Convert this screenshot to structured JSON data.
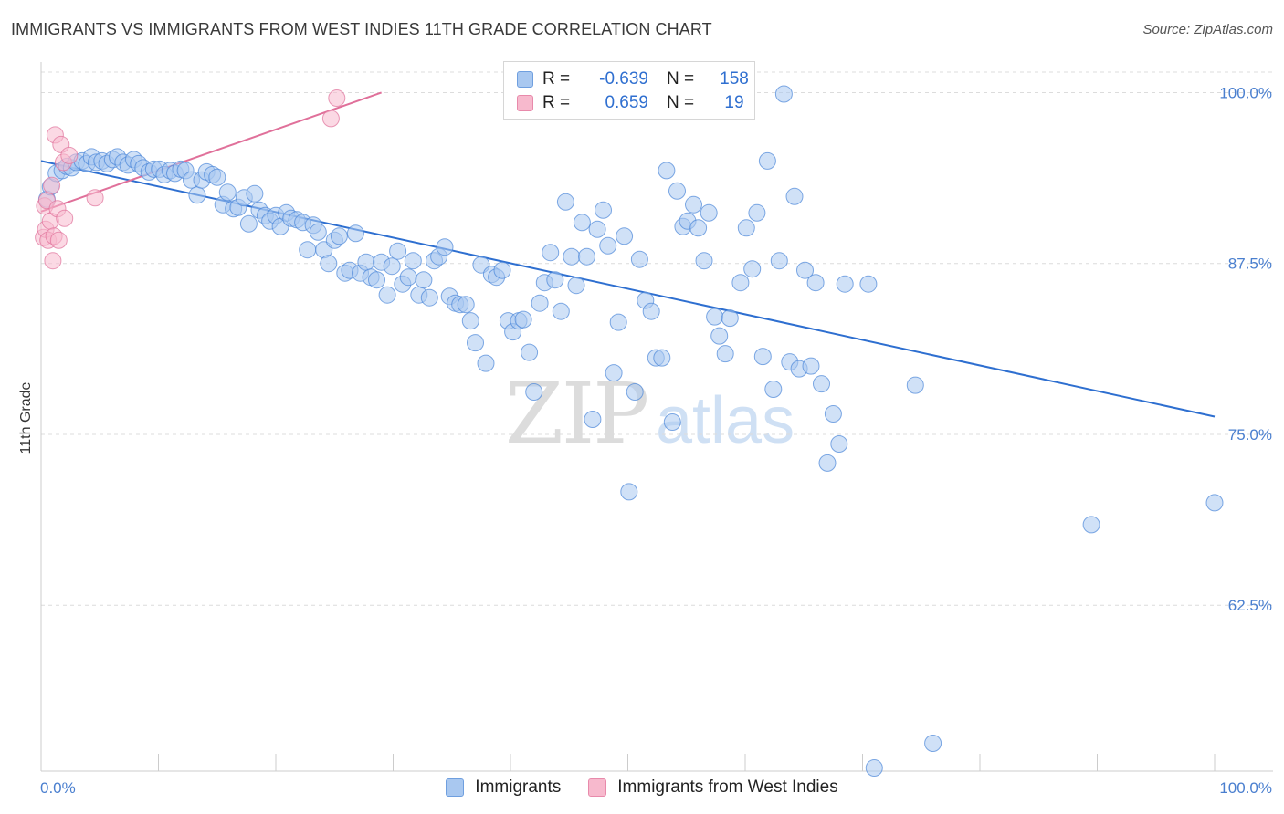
{
  "header": {
    "title": "IMMIGRANTS VS IMMIGRANTS FROM WEST INDIES 11TH GRADE CORRELATION CHART",
    "source": "Source: ZipAtlas.com"
  },
  "watermark": {
    "zip": "ZIP",
    "atlas": "atlas"
  },
  "legend": {
    "rows": [
      {
        "r_label": "R =",
        "r_value": "-0.639",
        "n_label": "N =",
        "n_value": "158",
        "color": "#a9c8f0"
      },
      {
        "r_label": "R =",
        "r_value": "0.659",
        "n_label": "N =",
        "n_value": "19",
        "color": "#f7b9cd"
      }
    ]
  },
  "bottom_legend": {
    "items": [
      {
        "label": "Immigrants",
        "color": "#a9c8f0"
      },
      {
        "label": "Immigrants from West Indies",
        "color": "#f7b9cd"
      }
    ]
  },
  "chart_data": {
    "type": "scatter",
    "title": "IMMIGRANTS VS IMMIGRANTS FROM WEST INDIES 11TH GRADE CORRELATION CHART",
    "ylabel": "11th Grade",
    "xlabel": "",
    "xlim": [
      0,
      100
    ],
    "ylim": [
      50.5,
      101.5
    ],
    "x_tick_labels": [
      "0.0%",
      "100.0%"
    ],
    "y_ticks": [
      62.5,
      75.0,
      87.5,
      100.0
    ],
    "y_tick_labels": [
      "62.5%",
      "75.0%",
      "87.5%",
      "100.0%"
    ],
    "grid": "horizontal dashed",
    "legend_position": "top-center",
    "series": [
      {
        "name": "Immigrants",
        "color": "#4a86d8",
        "fill": "#a9c8f0",
        "trend": {
          "x": [
            0,
            100
          ],
          "y": [
            95.0,
            76.3
          ]
        },
        "points": [
          [
            0.5,
            92.2
          ],
          [
            0.8,
            93.1
          ],
          [
            1.3,
            94.1
          ],
          [
            1.8,
            94.3
          ],
          [
            2.2,
            94.6
          ],
          [
            2.6,
            94.5
          ],
          [
            3.0,
            94.9
          ],
          [
            3.5,
            95.0
          ],
          [
            3.9,
            94.8
          ],
          [
            4.3,
            95.3
          ],
          [
            4.7,
            94.9
          ],
          [
            5.2,
            95.0
          ],
          [
            5.6,
            94.8
          ],
          [
            6.1,
            95.1
          ],
          [
            6.5,
            95.3
          ],
          [
            7.0,
            94.9
          ],
          [
            7.4,
            94.7
          ],
          [
            7.9,
            95.1
          ],
          [
            8.3,
            94.8
          ],
          [
            8.7,
            94.5
          ],
          [
            9.2,
            94.2
          ],
          [
            9.6,
            94.4
          ],
          [
            10.1,
            94.4
          ],
          [
            10.5,
            94.0
          ],
          [
            11.0,
            94.3
          ],
          [
            11.4,
            94.1
          ],
          [
            11.9,
            94.4
          ],
          [
            12.3,
            94.3
          ],
          [
            12.8,
            93.6
          ],
          [
            13.3,
            92.5
          ],
          [
            13.7,
            93.6
          ],
          [
            14.1,
            94.2
          ],
          [
            14.6,
            94.0
          ],
          [
            15.0,
            93.8
          ],
          [
            15.5,
            91.8
          ],
          [
            15.9,
            92.7
          ],
          [
            16.4,
            91.5
          ],
          [
            16.8,
            91.6
          ],
          [
            17.3,
            92.3
          ],
          [
            17.7,
            90.4
          ],
          [
            18.2,
            92.6
          ],
          [
            18.6,
            91.4
          ],
          [
            19.1,
            91.0
          ],
          [
            19.5,
            90.6
          ],
          [
            20.0,
            91.0
          ],
          [
            20.4,
            90.2
          ],
          [
            20.9,
            91.2
          ],
          [
            21.3,
            90.8
          ],
          [
            21.8,
            90.7
          ],
          [
            22.3,
            90.5
          ],
          [
            22.7,
            88.5
          ],
          [
            23.2,
            90.3
          ],
          [
            23.6,
            89.8
          ],
          [
            24.1,
            88.5
          ],
          [
            24.5,
            87.5
          ],
          [
            25.0,
            89.2
          ],
          [
            25.4,
            89.5
          ],
          [
            25.9,
            86.8
          ],
          [
            26.3,
            87.0
          ],
          [
            26.8,
            89.7
          ],
          [
            27.2,
            86.8
          ],
          [
            27.7,
            87.6
          ],
          [
            28.1,
            86.5
          ],
          [
            28.6,
            86.3
          ],
          [
            29.0,
            87.6
          ],
          [
            29.5,
            85.2
          ],
          [
            29.9,
            87.3
          ],
          [
            30.4,
            88.4
          ],
          [
            30.8,
            86.0
          ],
          [
            31.3,
            86.5
          ],
          [
            31.7,
            87.7
          ],
          [
            32.2,
            85.2
          ],
          [
            32.6,
            86.3
          ],
          [
            33.1,
            85.0
          ],
          [
            33.5,
            87.7
          ],
          [
            33.9,
            88.0
          ],
          [
            34.4,
            88.7
          ],
          [
            34.8,
            85.1
          ],
          [
            35.3,
            84.6
          ],
          [
            35.7,
            84.5
          ],
          [
            36.2,
            84.5
          ],
          [
            36.6,
            83.3
          ],
          [
            37.0,
            81.7
          ],
          [
            37.5,
            87.4
          ],
          [
            37.9,
            80.2
          ],
          [
            38.4,
            86.7
          ],
          [
            38.8,
            86.5
          ],
          [
            39.3,
            87.0
          ],
          [
            39.8,
            83.3
          ],
          [
            40.2,
            82.5
          ],
          [
            40.7,
            83.3
          ],
          [
            41.1,
            83.4
          ],
          [
            41.6,
            81.0
          ],
          [
            42.0,
            78.1
          ],
          [
            42.5,
            84.6
          ],
          [
            42.9,
            86.1
          ],
          [
            43.4,
            88.3
          ],
          [
            43.8,
            86.3
          ],
          [
            44.3,
            84.0
          ],
          [
            44.7,
            92.0
          ],
          [
            45.2,
            88.0
          ],
          [
            45.6,
            85.9
          ],
          [
            46.1,
            90.5
          ],
          [
            46.5,
            88.0
          ],
          [
            47.0,
            76.1
          ],
          [
            47.4,
            90.0
          ],
          [
            47.9,
            91.4
          ],
          [
            48.3,
            88.8
          ],
          [
            48.8,
            79.5
          ],
          [
            49.2,
            83.2
          ],
          [
            49.7,
            89.5
          ],
          [
            50.1,
            70.8
          ],
          [
            50.6,
            78.1
          ],
          [
            51.0,
            87.8
          ],
          [
            51.5,
            84.8
          ],
          [
            52.0,
            84.0
          ],
          [
            52.4,
            80.6
          ],
          [
            52.9,
            80.6
          ],
          [
            53.3,
            94.3
          ],
          [
            53.8,
            75.9
          ],
          [
            54.2,
            92.8
          ],
          [
            54.7,
            90.2
          ],
          [
            55.1,
            90.6
          ],
          [
            55.6,
            91.8
          ],
          [
            56.0,
            90.1
          ],
          [
            56.5,
            87.7
          ],
          [
            56.9,
            91.2
          ],
          [
            57.4,
            83.6
          ],
          [
            57.8,
            82.2
          ],
          [
            58.3,
            80.9
          ],
          [
            58.7,
            83.5
          ],
          [
            59.2,
            100.0
          ],
          [
            59.6,
            86.1
          ],
          [
            60.1,
            90.1
          ],
          [
            60.6,
            87.1
          ],
          [
            61.0,
            91.2
          ],
          [
            61.5,
            80.7
          ],
          [
            61.9,
            95.0
          ],
          [
            62.4,
            78.3
          ],
          [
            62.9,
            87.7
          ],
          [
            63.3,
            99.9
          ],
          [
            63.8,
            80.3
          ],
          [
            64.2,
            92.4
          ],
          [
            64.6,
            79.8
          ],
          [
            65.1,
            87.0
          ],
          [
            65.6,
            80.0
          ],
          [
            66.0,
            86.1
          ],
          [
            66.5,
            78.7
          ],
          [
            67.0,
            72.9
          ],
          [
            67.5,
            76.5
          ],
          [
            68.0,
            74.3
          ],
          [
            68.5,
            86.0
          ],
          [
            70.5,
            86.0
          ],
          [
            71.0,
            50.6
          ],
          [
            74.5,
            78.6
          ],
          [
            76.0,
            52.4
          ],
          [
            89.5,
            68.4
          ],
          [
            100.0,
            70.0
          ]
        ]
      },
      {
        "name": "Immigrants from West Indies",
        "color": "#e0709a",
        "fill": "#f7b9cd",
        "trend": {
          "x": [
            0,
            29
          ],
          "y": [
            91.3,
            100.0
          ]
        },
        "points": [
          [
            0.2,
            89.4
          ],
          [
            0.3,
            91.7
          ],
          [
            0.4,
            90.0
          ],
          [
            0.5,
            92.1
          ],
          [
            0.6,
            89.2
          ],
          [
            0.8,
            90.6
          ],
          [
            0.9,
            93.2
          ],
          [
            1.0,
            87.7
          ],
          [
            1.1,
            89.5
          ],
          [
            1.2,
            96.9
          ],
          [
            1.4,
            91.5
          ],
          [
            1.5,
            89.2
          ],
          [
            1.7,
            96.2
          ],
          [
            1.9,
            94.9
          ],
          [
            2.0,
            90.8
          ],
          [
            2.4,
            95.4
          ],
          [
            4.6,
            92.3
          ],
          [
            24.7,
            98.1
          ],
          [
            25.2,
            99.6
          ]
        ]
      }
    ]
  }
}
